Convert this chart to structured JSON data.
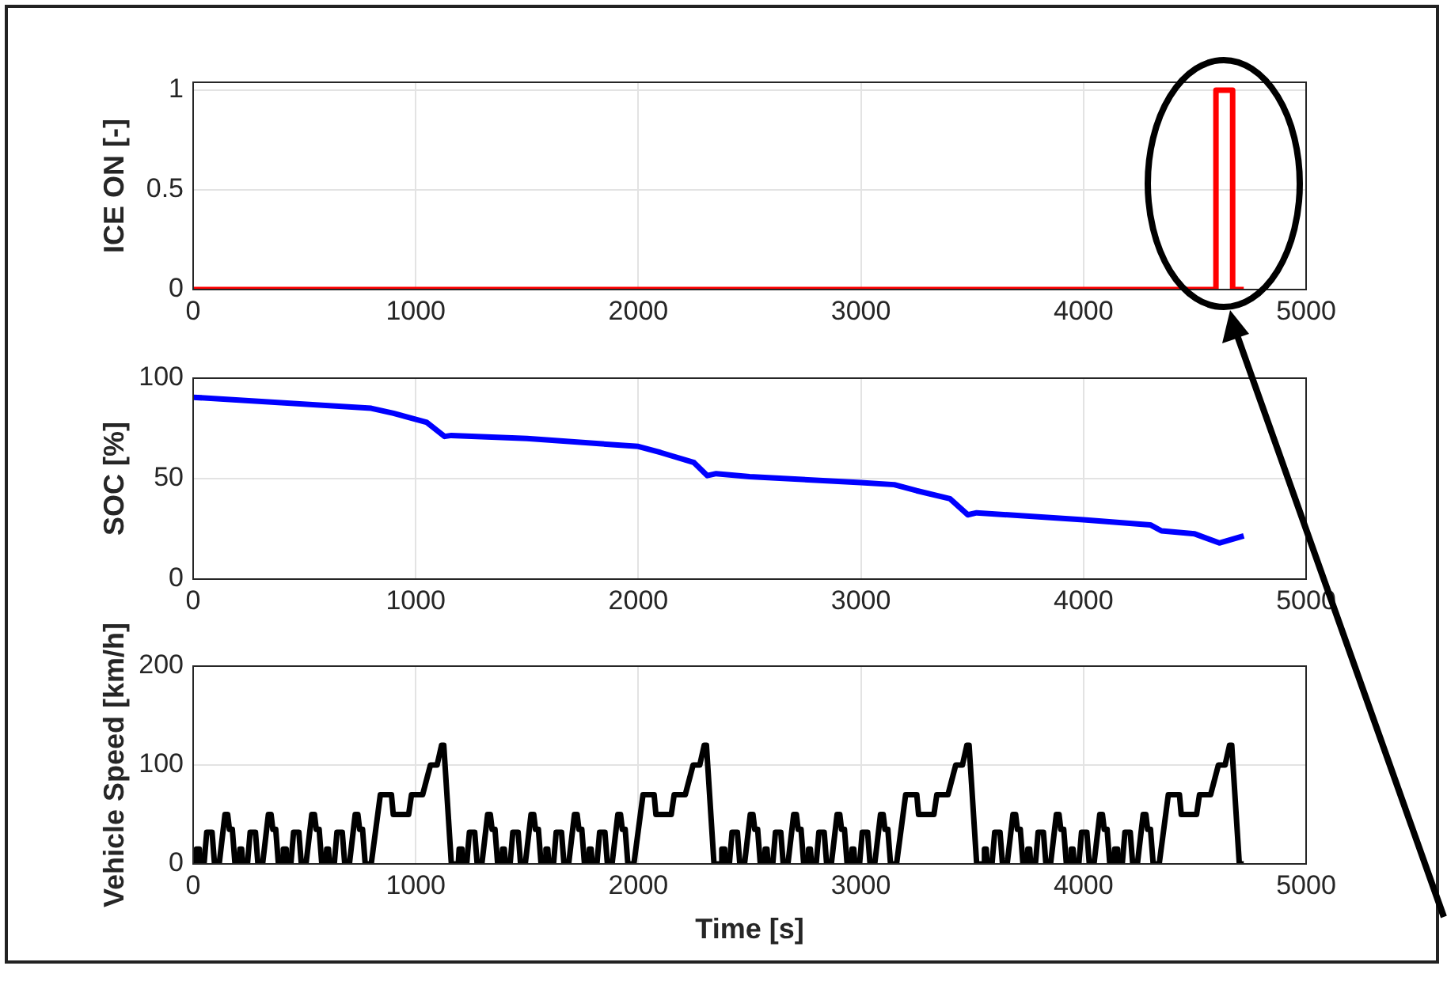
{
  "chart_data": [
    {
      "type": "step",
      "ylabel": "ICE ON [-]",
      "x": [
        0,
        4595,
        4670,
        4720
      ],
      "values": [
        0,
        1,
        0,
        0
      ],
      "color": "#ff0000",
      "xlim": [
        0,
        5000
      ],
      "xticks": [
        0,
        1000,
        2000,
        3000,
        4000,
        5000
      ],
      "ylim": [
        0,
        1.04
      ],
      "yticks": [
        0,
        0.5,
        1
      ],
      "grid": true
    },
    {
      "type": "line",
      "ylabel": "SOC [%]",
      "x": [
        0,
        800,
        900,
        1050,
        1130,
        1160,
        1500,
        2000,
        2100,
        2250,
        2310,
        2350,
        2500,
        3000,
        3150,
        3250,
        3400,
        3480,
        3520,
        4000,
        4300,
        4350,
        4500,
        4610,
        4720
      ],
      "values": [
        90.5,
        85,
        82.5,
        78,
        71,
        71.5,
        70,
        66,
        63,
        58,
        51.5,
        52.5,
        51,
        48,
        47,
        44,
        40,
        32,
        33,
        29.5,
        27,
        24,
        22.5,
        18,
        21.5
      ],
      "color": "#0000ff",
      "xlim": [
        0,
        5000
      ],
      "xticks": [
        0,
        1000,
        2000,
        3000,
        4000,
        5000
      ],
      "ylim": [
        0,
        100
      ],
      "yticks": [
        0,
        50,
        100
      ],
      "grid": true
    },
    {
      "type": "line",
      "ylabel": "Vehicle Speed [km/h]",
      "xlabel": "Time [s]",
      "color": "#000000",
      "xlim": [
        0,
        5000
      ],
      "xticks": [
        0,
        1000,
        2000,
        3000,
        4000,
        5000
      ],
      "ylim": [
        0,
        200
      ],
      "yticks": [
        0,
        100,
        200
      ],
      "grid": true,
      "x": [
        0,
        11,
        15,
        23,
        28,
        49,
        61,
        85,
        96,
        117,
        143,
        155,
        163,
        176,
        188,
        206,
        210,
        218,
        223,
        244,
        256,
        280,
        291,
        312,
        338,
        350,
        358,
        371,
        383,
        401,
        405,
        413,
        418,
        439,
        451,
        475,
        486,
        507,
        533,
        545,
        553,
        566,
        578,
        596,
        600,
        608,
        613,
        634,
        646,
        670,
        681,
        702,
        728,
        740,
        748,
        761,
        773,
        800,
        841,
        891,
        899,
        968,
        981,
        1031,
        1066,
        1096,
        1116,
        1126,
        1160,
        1191,
        1195,
        1203,
        1208,
        1229,
        1241,
        1265,
        1276,
        1297,
        1323,
        1335,
        1343,
        1356,
        1368,
        1386,
        1390,
        1398,
        1403,
        1424,
        1436,
        1460,
        1471,
        1492,
        1518,
        1530,
        1538,
        1551,
        1563,
        1581,
        1585,
        1593,
        1598,
        1619,
        1631,
        1655,
        1666,
        1687,
        1713,
        1725,
        1733,
        1746,
        1758,
        1776,
        1780,
        1788,
        1793,
        1814,
        1826,
        1850,
        1861,
        1882,
        1908,
        1920,
        1928,
        1941,
        1953,
        1980,
        2021,
        2071,
        2079,
        2148,
        2161,
        2211,
        2246,
        2276,
        2296,
        2306,
        2340,
        2371,
        2375,
        2383,
        2388,
        2409,
        2421,
        2445,
        2456,
        2477,
        2503,
        2515,
        2523,
        2536,
        2548,
        2566,
        2570,
        2578,
        2583,
        2604,
        2616,
        2640,
        2651,
        2672,
        2698,
        2710,
        2718,
        2731,
        2743,
        2761,
        2765,
        2773,
        2778,
        2799,
        2811,
        2835,
        2846,
        2867,
        2893,
        2905,
        2913,
        2926,
        2938,
        2956,
        2960,
        2968,
        2973,
        2994,
        3006,
        3030,
        3041,
        3062,
        3088,
        3100,
        3108,
        3121,
        3133,
        3160,
        3201,
        3251,
        3259,
        3328,
        3341,
        3391,
        3426,
        3456,
        3476,
        3486,
        3520,
        3551,
        3555,
        3563,
        3568,
        3589,
        3601,
        3625,
        3636,
        3657,
        3683,
        3695,
        3703,
        3716,
        3728,
        3746,
        3750,
        3758,
        3763,
        3784,
        3796,
        3820,
        3831,
        3852,
        3878,
        3890,
        3898,
        3911,
        3923,
        3941,
        3945,
        3953,
        3958,
        3979,
        3991,
        4015,
        4026,
        4047,
        4073,
        4085,
        4093,
        4106,
        4118,
        4136,
        4140,
        4148,
        4153,
        4174,
        4186,
        4210,
        4221,
        4242,
        4268,
        4280,
        4288,
        4301,
        4313,
        4340,
        4381,
        4431,
        4439,
        4508,
        4521,
        4571,
        4606,
        4636,
        4656,
        4666,
        4700,
        4720
      ],
      "values": [
        0,
        0,
        15,
        15,
        0,
        0,
        32,
        32,
        0,
        0,
        50,
        50,
        35,
        35,
        0,
        0,
        15,
        15,
        0,
        0,
        32,
        32,
        0,
        0,
        50,
        50,
        35,
        35,
        0,
        0,
        15,
        15,
        0,
        0,
        32,
        32,
        0,
        0,
        50,
        50,
        35,
        35,
        0,
        0,
        15,
        15,
        0,
        0,
        32,
        32,
        0,
        0,
        50,
        50,
        35,
        35,
        0,
        0,
        70,
        70,
        50,
        50,
        70,
        70,
        100,
        100,
        120,
        120,
        0,
        0,
        15,
        15,
        0,
        0,
        32,
        32,
        0,
        0,
        50,
        50,
        35,
        35,
        0,
        0,
        15,
        15,
        0,
        0,
        32,
        32,
        0,
        0,
        50,
        50,
        35,
        35,
        0,
        0,
        15,
        15,
        0,
        0,
        32,
        32,
        0,
        0,
        50,
        50,
        35,
        35,
        0,
        0,
        15,
        15,
        0,
        0,
        32,
        32,
        0,
        0,
        50,
        50,
        35,
        35,
        0,
        0,
        70,
        70,
        50,
        50,
        70,
        70,
        100,
        100,
        120,
        120,
        0,
        0,
        15,
        15,
        0,
        0,
        32,
        32,
        0,
        0,
        50,
        50,
        35,
        35,
        0,
        0,
        15,
        15,
        0,
        0,
        32,
        32,
        0,
        0,
        50,
        50,
        35,
        35,
        0,
        0,
        15,
        15,
        0,
        0,
        32,
        32,
        0,
        0,
        50,
        50,
        35,
        35,
        0,
        0,
        15,
        15,
        0,
        0,
        32,
        32,
        0,
        0,
        50,
        50,
        35,
        35,
        0,
        0,
        70,
        70,
        50,
        50,
        70,
        70,
        100,
        100,
        120,
        120,
        0,
        0,
        15,
        15,
        0,
        0,
        32,
        32,
        0,
        0,
        50,
        50,
        35,
        35,
        0,
        0,
        15,
        15,
        0,
        0,
        32,
        32,
        0,
        0,
        50,
        50,
        35,
        35,
        0,
        0,
        15,
        15,
        0,
        0,
        32,
        32,
        0,
        0,
        50,
        50,
        35,
        35,
        0,
        0,
        15,
        15,
        0,
        0,
        32,
        32,
        0,
        0,
        50,
        50,
        35,
        35,
        0,
        0,
        70,
        70,
        50,
        50,
        70,
        70,
        100,
        100,
        120,
        120,
        0,
        0
      ]
    }
  ]
}
